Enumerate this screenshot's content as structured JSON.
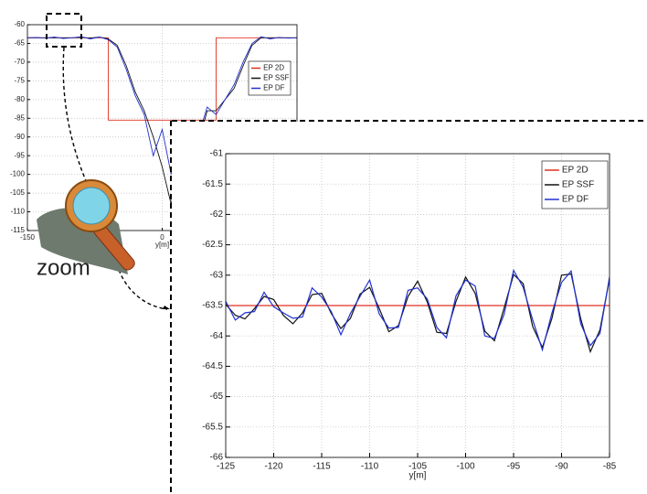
{
  "chart_data": [
    {
      "type": "line",
      "xlabel": "y[m]",
      "xlim": [
        -150,
        150
      ],
      "ylim": [
        -115,
        -60
      ],
      "xticks": [
        -150,
        0
      ],
      "yticks": [
        -60,
        -65,
        -70,
        -75,
        -80,
        -85,
        -90,
        -95,
        -100,
        -105,
        -110,
        -115
      ],
      "grid": true,
      "legend": "upper right",
      "series": [
        {
          "name": "EP 2D",
          "color": "#e03020",
          "x": [
            -150,
            -60,
            -60,
            60,
            60,
            150
          ],
          "values": [
            -63.5,
            -63.5,
            -85.5,
            -85.5,
            -63.5,
            -63.5
          ]
        },
        {
          "name": "EP SSF",
          "color": "#111111",
          "x": [
            -150,
            -140,
            -130,
            -120,
            -110,
            -100,
            -90,
            -80,
            -70,
            -60,
            -50,
            -40,
            -30,
            -20,
            -10,
            0,
            10,
            20,
            30,
            40,
            50,
            60,
            70,
            80,
            90,
            100,
            110,
            120,
            130,
            140,
            150
          ],
          "values": [
            -63.5,
            -63.5,
            -63.5,
            -63.5,
            -63.5,
            -63.5,
            -63.4,
            -63.6,
            -63.3,
            -63.8,
            -65.5,
            -71,
            -78,
            -83,
            -90,
            -98,
            -108,
            -95,
            -100,
            -92,
            -83,
            -83,
            -80,
            -77,
            -71,
            -65.5,
            -63.5,
            -63.5,
            -63.5,
            -63.5,
            -63.5
          ]
        },
        {
          "name": "EP DF",
          "color": "#2030d0",
          "x": [
            -150,
            -140,
            -130,
            -120,
            -110,
            -100,
            -90,
            -80,
            -70,
            -60,
            -50,
            -40,
            -30,
            -20,
            -10,
            0,
            10,
            20,
            30,
            40,
            50,
            60,
            70,
            80,
            90,
            100,
            110,
            120,
            130,
            140,
            150
          ],
          "values": [
            -63.5,
            -63.4,
            -63.6,
            -63.3,
            -63.7,
            -63.5,
            -63.2,
            -63.8,
            -63.3,
            -64,
            -66,
            -72,
            -79,
            -84,
            -95,
            -88,
            -100,
            -86,
            -105,
            -90,
            -82,
            -84,
            -80,
            -76,
            -70,
            -65,
            -63.2,
            -63.8,
            -63.4,
            -63.6,
            -63.5
          ]
        }
      ]
    },
    {
      "type": "line",
      "xlabel": "y[m]",
      "xlim": [
        -125,
        -85
      ],
      "ylim": [
        -66,
        -61
      ],
      "xticks": [
        -125,
        -120,
        -115,
        -110,
        -105,
        -100,
        -95,
        -90,
        -85
      ],
      "yticks": [
        -61,
        -61.5,
        -62,
        -62.5,
        -63,
        -63.5,
        -64,
        -64.5,
        -65,
        -65.5,
        -66
      ],
      "grid": true,
      "legend": "upper right",
      "series": [
        {
          "name": "EP 2D",
          "color": "#e03020",
          "x": [
            -125,
            -85
          ],
          "values": [
            -63.5,
            -63.5
          ]
        },
        {
          "name": "EP SSF",
          "color": "#111111",
          "x": [
            -125,
            -124,
            -123,
            -122,
            -121,
            -120,
            -119,
            -118,
            -117,
            -116,
            -115,
            -114,
            -113,
            -112,
            -111,
            -110,
            -109,
            -108,
            -107,
            -106,
            -105,
            -104,
            -103,
            -102,
            -101,
            -100,
            -99,
            -98,
            -97,
            -96,
            -95,
            -94,
            -93,
            -92,
            -91,
            -90,
            -89,
            -88,
            -87,
            -86,
            -85
          ],
          "values": [
            -63.48,
            -63.66,
            -63.72,
            -63.55,
            -63.35,
            -63.4,
            -63.66,
            -63.8,
            -63.62,
            -63.32,
            -63.3,
            -63.63,
            -63.88,
            -63.71,
            -63.31,
            -63.2,
            -63.55,
            -63.93,
            -63.83,
            -63.35,
            -63.1,
            -63.44,
            -63.94,
            -63.96,
            -63.43,
            -63.03,
            -63.3,
            -63.92,
            -64.08,
            -63.55,
            -62.99,
            -63.14,
            -63.85,
            -64.19,
            -63.71,
            -63.0,
            -62.98,
            -63.72,
            -64.26,
            -63.9,
            -63.06
          ]
        },
        {
          "name": "EP DF",
          "color": "#2030d0",
          "x": [
            -125,
            -124,
            -123,
            -122,
            -121,
            -120,
            -119,
            -118,
            -117,
            -116,
            -115,
            -114,
            -113,
            -112,
            -111,
            -110,
            -109,
            -108,
            -107,
            -106,
            -105,
            -104,
            -103,
            -102,
            -101,
            -100,
            -99,
            -98,
            -97,
            -96,
            -95,
            -94,
            -93,
            -92,
            -91,
            -90,
            -89,
            -88,
            -87,
            -86,
            -85
          ],
          "values": [
            -63.43,
            -63.74,
            -63.62,
            -63.6,
            -63.28,
            -63.52,
            -63.62,
            -63.71,
            -63.69,
            -63.21,
            -63.36,
            -63.6,
            -63.98,
            -63.63,
            -63.35,
            -63.08,
            -63.64,
            -63.87,
            -63.86,
            -63.25,
            -63.21,
            -63.39,
            -63.86,
            -64.03,
            -63.34,
            -63.08,
            -63.18,
            -64.0,
            -64.04,
            -63.65,
            -62.92,
            -63.2,
            -63.74,
            -64.23,
            -63.62,
            -63.12,
            -62.93,
            -63.8,
            -64.16,
            -63.96,
            -63.03
          ]
        }
      ]
    }
  ],
  "annotation": "zoom"
}
